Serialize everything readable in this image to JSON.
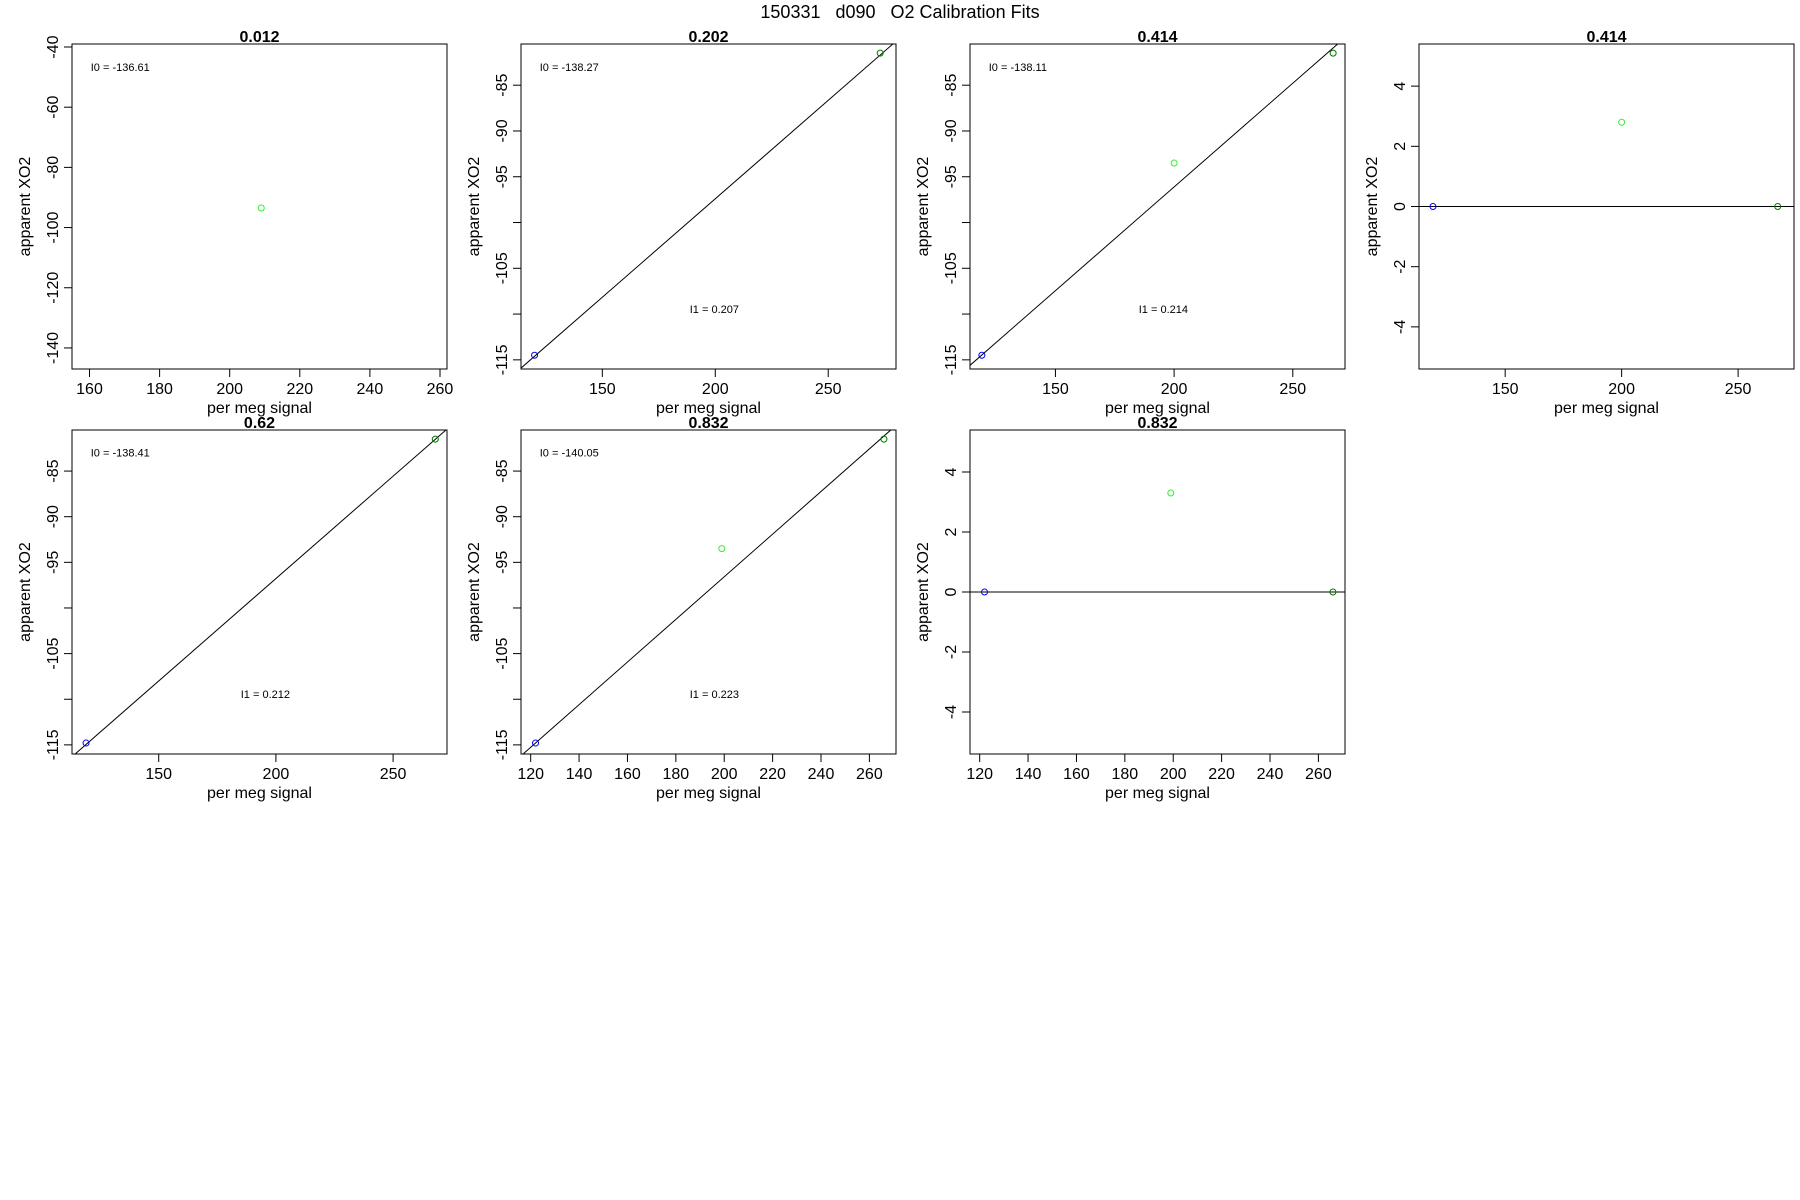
{
  "title": "150331   d090   O2 Calibration Fits",
  "colors": {
    "blue": "#0000ff",
    "light_green": "#33ee33",
    "dark_green": "#007700",
    "line": "#000000"
  },
  "chart_data": [
    {
      "type": "scatter",
      "title": "0.012",
      "xlabel": "per meg signal",
      "ylabel": "apparent XO2",
      "xlim": [
        155,
        262
      ],
      "ylim": [
        -147,
        -39
      ],
      "xticks": [
        160,
        180,
        200,
        220,
        240,
        260
      ],
      "yticks": [
        -40,
        -60,
        -80,
        -100,
        -120,
        -140
      ],
      "points": [
        {
          "x": 209,
          "y": -93.5,
          "color": "light_green"
        }
      ],
      "fit_line": null,
      "annotations": [
        {
          "text": "I0 =  -136.61"
        }
      ]
    },
    {
      "type": "scatter",
      "title": "0.202",
      "xlabel": "per meg signal",
      "ylabel": "apparent XO2",
      "xlim": [
        114,
        280
      ],
      "ylim": [
        -116,
        -80.5
      ],
      "xticks": [
        150,
        200,
        250
      ],
      "yticks": [
        -85,
        -90,
        -95,
        -105,
        -115
      ],
      "yminor": [
        -100,
        -110
      ],
      "points": [
        {
          "x": 120,
          "y": -114.5,
          "color": "blue"
        },
        {
          "x": 273,
          "y": -81.5,
          "color": "dark_green"
        }
      ],
      "fit_line": {
        "x": [
          114,
          280
        ],
        "y": [
          -115.9,
          -80.2
        ]
      },
      "annotations": [
        {
          "text": "I0 =  -138.27"
        },
        {
          "text": "I1 =  0.207"
        }
      ]
    },
    {
      "type": "scatter",
      "title": "0.414",
      "xlabel": "per meg signal",
      "ylabel": "apparent XO2",
      "xlim": [
        114,
        272
      ],
      "ylim": [
        -116,
        -80.5
      ],
      "xticks": [
        150,
        200,
        250
      ],
      "yticks": [
        -85,
        -90,
        -95,
        -105,
        -115
      ],
      "yminor": [
        -100,
        -110
      ],
      "points": [
        {
          "x": 119,
          "y": -114.5,
          "color": "blue"
        },
        {
          "x": 200,
          "y": -93.5,
          "color": "light_green"
        },
        {
          "x": 267,
          "y": -81.5,
          "color": "dark_green"
        }
      ],
      "fit_line": {
        "x": [
          114,
          272
        ],
        "y": [
          -115.6,
          -79.8
        ]
      },
      "annotations": [
        {
          "text": "I0 =  -138.11"
        },
        {
          "text": "I1 =  0.214"
        }
      ]
    },
    {
      "type": "scatter",
      "title": "0.414",
      "xlabel": "per meg signal",
      "ylabel": "apparent XO2",
      "xlim": [
        113,
        274
      ],
      "ylim": [
        -5.4,
        5.4
      ],
      "xticks": [
        150,
        200,
        250
      ],
      "yticks": [
        4,
        2,
        0,
        -2,
        -4
      ],
      "points": [
        {
          "x": 119,
          "y": 0,
          "color": "blue"
        },
        {
          "x": 200,
          "y": 2.8,
          "color": "light_green"
        },
        {
          "x": 267,
          "y": 0,
          "color": "dark_green"
        }
      ],
      "hline": 0,
      "annotations": []
    },
    {
      "type": "scatter",
      "title": "0.62",
      "xlabel": "per meg signal",
      "ylabel": "apparent XO2",
      "xlim": [
        113,
        273
      ],
      "ylim": [
        -116,
        -80.5
      ],
      "xticks": [
        150,
        200,
        250
      ],
      "yticks": [
        -85,
        -90,
        -95,
        -105,
        -115
      ],
      "yminor": [
        -100,
        -110
      ],
      "points": [
        {
          "x": 119,
          "y": -114.8,
          "color": "blue"
        },
        {
          "x": 268,
          "y": -81.5,
          "color": "dark_green"
        }
      ],
      "fit_line": {
        "x": [
          113,
          273
        ],
        "y": [
          -116.3,
          -80.4
        ]
      },
      "annotations": [
        {
          "text": "I0 =  -138.41"
        },
        {
          "text": "I1 =  0.212"
        }
      ]
    },
    {
      "type": "scatter",
      "title": "0.832",
      "xlabel": "per meg signal",
      "ylabel": "apparent XO2",
      "xlim": [
        116,
        271
      ],
      "ylim": [
        -116,
        -80.5
      ],
      "xticks": [
        120,
        140,
        160,
        180,
        200,
        220,
        240,
        260
      ],
      "yticks": [
        -85,
        -90,
        -95,
        -105,
        -115
      ],
      "yminor": [
        -100,
        -110
      ],
      "points": [
        {
          "x": 122,
          "y": -114.8,
          "color": "blue"
        },
        {
          "x": 199,
          "y": -93.5,
          "color": "light_green"
        },
        {
          "x": 266,
          "y": -81.5,
          "color": "dark_green"
        }
      ],
      "fit_line": {
        "x": [
          116,
          271
        ],
        "y": [
          -116.2,
          -80.0
        ]
      },
      "annotations": [
        {
          "text": "I0 =  -140.05"
        },
        {
          "text": "I1 =  0.223"
        }
      ]
    },
    {
      "type": "scatter",
      "title": "0.832",
      "xlabel": "per meg signal",
      "ylabel": "apparent XO2",
      "xlim": [
        116,
        271
      ],
      "ylim": [
        -5.4,
        5.4
      ],
      "xticks": [
        120,
        140,
        160,
        180,
        200,
        220,
        240,
        260
      ],
      "yticks": [
        4,
        2,
        0,
        -2,
        -4
      ],
      "points": [
        {
          "x": 122,
          "y": 0,
          "color": "blue"
        },
        {
          "x": 199,
          "y": 3.3,
          "color": "light_green"
        },
        {
          "x": 266,
          "y": 0,
          "color": "dark_green"
        }
      ],
      "hline": 0,
      "annotations": []
    }
  ]
}
